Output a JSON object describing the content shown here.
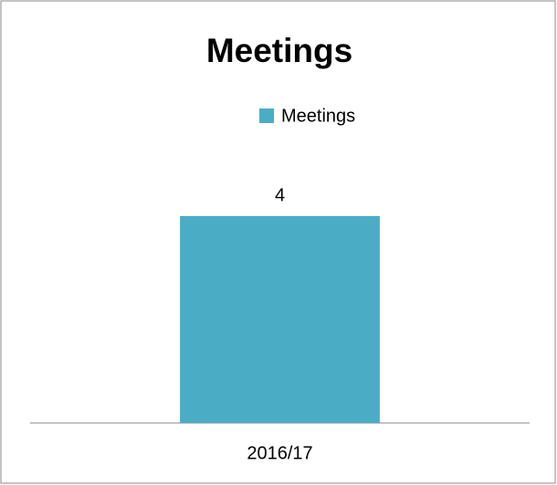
{
  "chart_data": {
    "type": "bar",
    "title": "Meetings",
    "categories": [
      "2016/17"
    ],
    "series": [
      {
        "name": "Meetings",
        "color": "#4bacc6",
        "values": [
          4
        ]
      }
    ]
  }
}
